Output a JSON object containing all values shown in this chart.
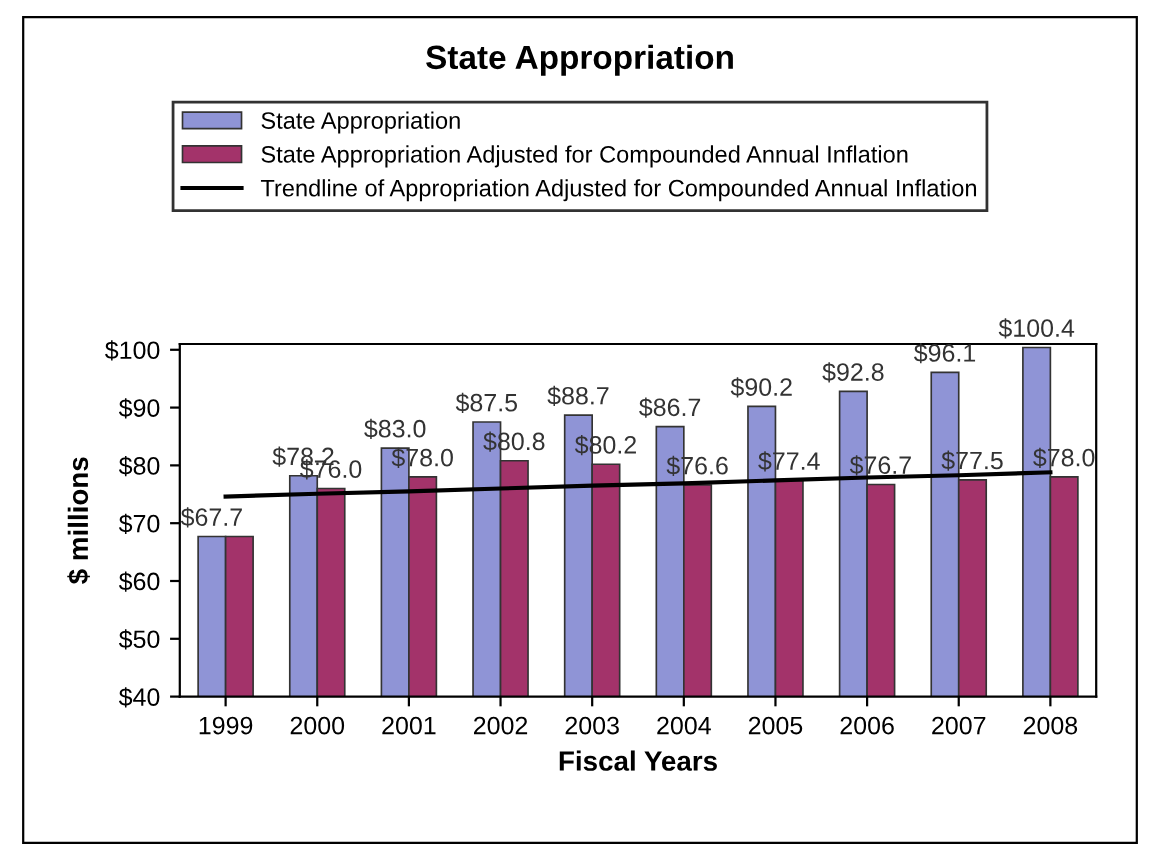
{
  "chart_data": {
    "type": "bar",
    "title": "State Appropriation",
    "xlabel": "Fiscal Years",
    "ylabel": "$ millions",
    "categories": [
      "1999",
      "2000",
      "2001",
      "2002",
      "2003",
      "2004",
      "2005",
      "2006",
      "2007",
      "2008"
    ],
    "series": [
      {
        "name": "State Appropriation",
        "color": "#8f94d6",
        "values": [
          67.7,
          78.2,
          83.0,
          87.5,
          88.7,
          86.7,
          90.2,
          92.8,
          96.1,
          100.4
        ],
        "value_labels": [
          "$67.7",
          "$78.2",
          "$83.0",
          "$87.5",
          "$88.7",
          "$86.7",
          "$90.2",
          "$92.8",
          "$96.1",
          "$100.4"
        ]
      },
      {
        "name": "State Appropriation Adjusted for Compounded Annual Inflation",
        "color": "#a3336a",
        "values": [
          67.7,
          76.0,
          78.0,
          80.8,
          80.2,
          76.6,
          77.4,
          76.7,
          77.5,
          78.0
        ],
        "value_labels": [
          null,
          "$76.0",
          "$78.0",
          "$80.8",
          "$80.2",
          "$76.6",
          "$77.4",
          "$76.7",
          "$77.5",
          "$78.0"
        ]
      },
      {
        "name": "Trendline of Appropriation Adjusted for Compounded Annual Inflation",
        "type": "line",
        "color": "#000000",
        "values": [
          74.6,
          75.1,
          75.5,
          76.0,
          76.5,
          76.9,
          77.4,
          77.9,
          78.3,
          78.8
        ]
      }
    ],
    "ylim": [
      40,
      101
    ],
    "yticks": [
      {
        "value": 40,
        "label": "$40"
      },
      {
        "value": 50,
        "label": "$50"
      },
      {
        "value": 60,
        "label": "$60"
      },
      {
        "value": 70,
        "label": "$70"
      },
      {
        "value": 80,
        "label": "$80"
      },
      {
        "value": 90,
        "label": "$90"
      },
      {
        "value": 100,
        "label": "$100"
      }
    ],
    "grid": false,
    "legend": "top"
  }
}
